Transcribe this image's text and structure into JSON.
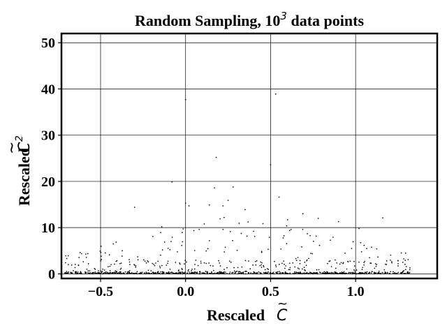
{
  "chart_data": {
    "type": "scatter",
    "title": {
      "prefix": "Random Sampling, 10",
      "exponent": "3",
      "suffix": " data points"
    },
    "xlabel": {
      "text": "Rescaled ",
      "symbol": "C",
      "symbol_accent": "~"
    },
    "ylabel": {
      "text": "Rescaled ",
      "symbol": "C",
      "exponent": "2",
      "symbol_accent": "~"
    },
    "xlim": [
      -0.73,
      1.48
    ],
    "ylim": [
      -1.0,
      52.0
    ],
    "xticks": [
      -0.5,
      0.0,
      0.5,
      1.0
    ],
    "xtick_labels": [
      "−0.5",
      "0.0",
      "0.5",
      "1.0"
    ],
    "yticks": [
      0,
      10,
      20,
      30,
      40,
      50
    ],
    "ytick_labels": [
      "0",
      "10",
      "20",
      "30",
      "40",
      "50"
    ],
    "grid": true,
    "marker_color": "#000000",
    "points_outliers": [
      [
        0.0,
        37.7
      ],
      [
        0.53,
        38.9
      ],
      [
        -0.08,
        19.9
      ],
      [
        0.18,
        25.2
      ],
      [
        0.5,
        23.6
      ],
      [
        0.17,
        18.6
      ],
      [
        0.28,
        18.8
      ],
      [
        0.55,
        16.6
      ],
      [
        -0.3,
        14.4
      ],
      [
        0.0,
        15.3
      ],
      [
        0.02,
        14.7
      ],
      [
        0.25,
        15.9
      ],
      [
        0.22,
        14.7
      ],
      [
        0.14,
        14.9
      ],
      [
        0.35,
        13.9
      ],
      [
        0.69,
        13.0
      ],
      [
        0.78,
        12.0
      ],
      [
        1.16,
        12.1
      ],
      [
        0.9,
        11.3
      ],
      [
        0.6,
        11.7
      ],
      [
        -0.14,
        10.2
      ],
      [
        1.02,
        9.8
      ],
      [
        0.11,
        10.8
      ],
      [
        0.08,
        9.6
      ],
      [
        0.4,
        9.2
      ]
    ],
    "points_noise_seed": 1234,
    "points_total": 1000
  }
}
